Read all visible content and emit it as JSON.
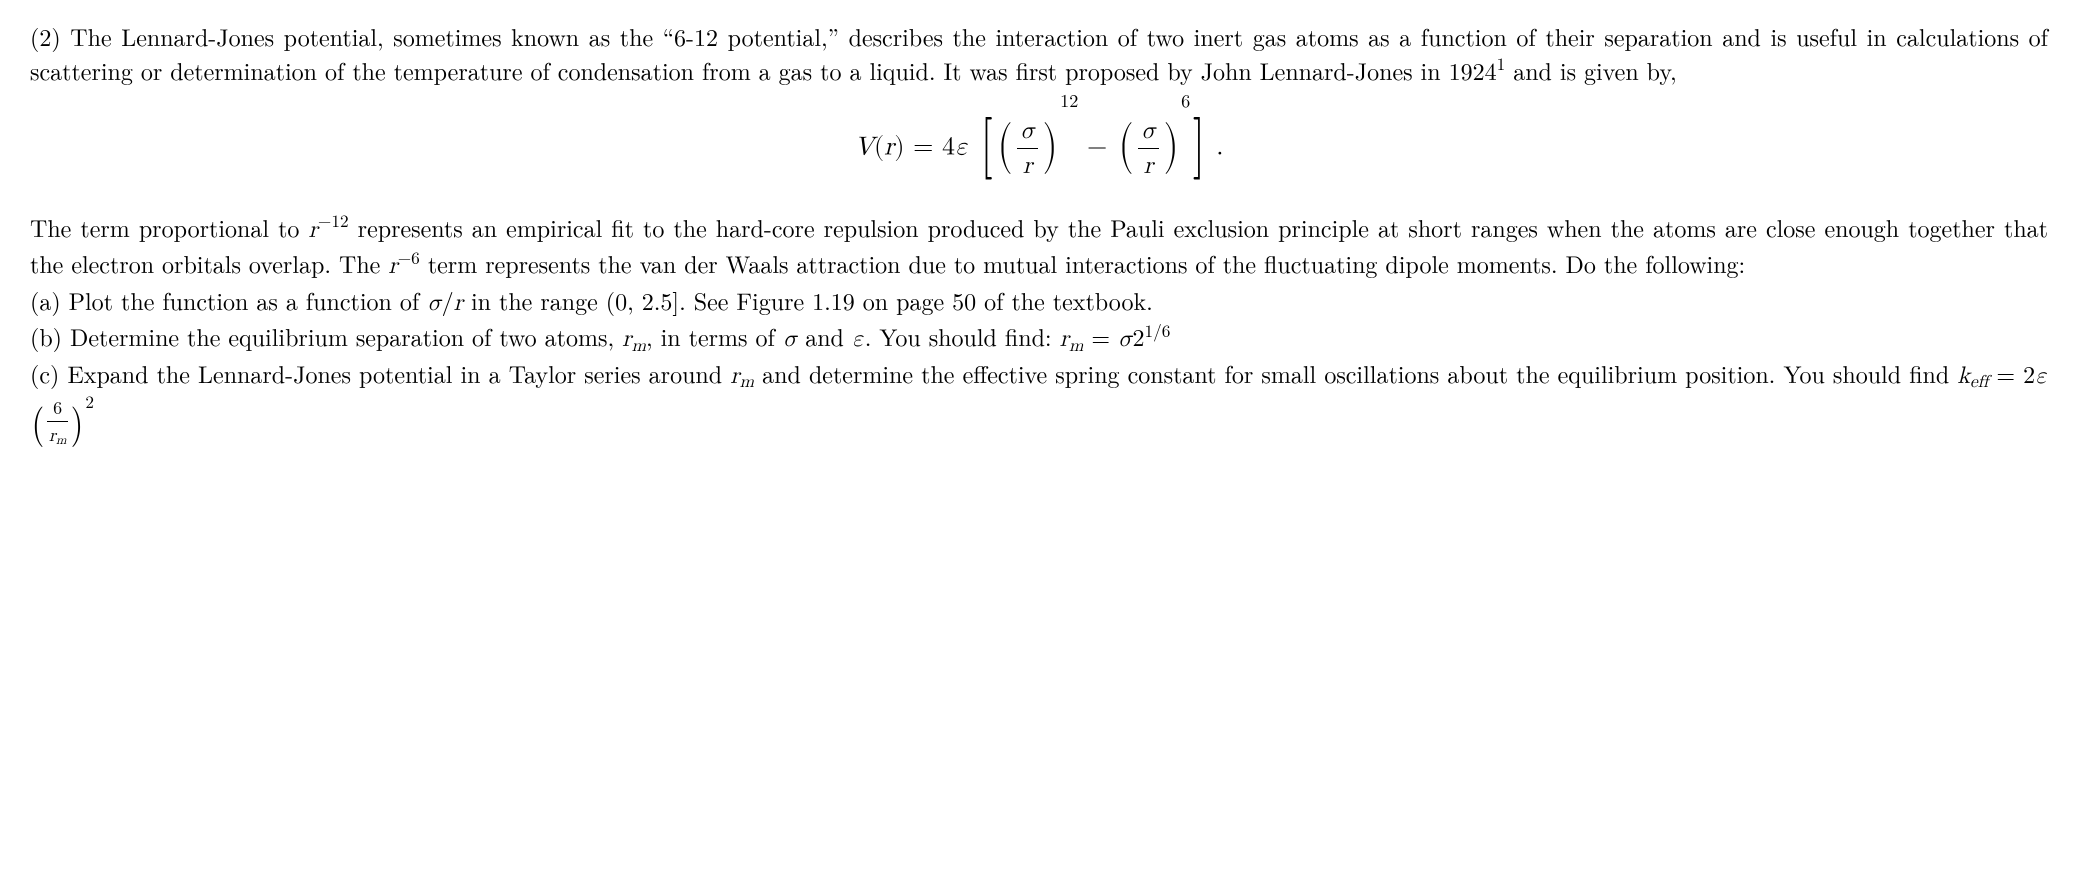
{
  "p1_a": "(2) The Lennard-Jones potential, sometimes known as the “6-12 potential,” describes the interaction of two inert gas atoms as a function of their separation and is useful in calculations of scattering or determination of the temperature of condensation from a gas to a liquid. It was first proposed by John Lennard-Jones in 1924",
  "p1_supref": "1",
  "p1_b": " and is given by,",
  "eq": {
    "Vr": "V",
    "r_var": "r",
    "eq_sign": " = 4",
    "eps": "ε",
    "sigma": "σ",
    "exp12": "12",
    "minus": " − ",
    "exp6": "6",
    "period": " ."
  },
  "p2_a": "The term proportional to ",
  "p2_r": "r",
  "p2_exp12": "−12",
  "p2_b": " represents an empirical fit to the hard-core repulsion produced by the Pauli exclusion principle at short ranges when the atoms are close enough together that the electron orbitals overlap. The ",
  "p2_exp6": "−6",
  "p2_c": " term represents the van der Waals attraction due to mutual interactions of the fluctuating dipole moments. Do the following:",
  "pa": {
    "a1": "(a) Plot the function as a function of ",
    "sigma": "σ",
    "slash": "/",
    "r": "r",
    "a2": " in the range (0, 2.5]. See Figure 1.19 on page 50 of the textbook."
  },
  "pb": {
    "b1": "(b) Determine the equilibrium separation of two atoms, ",
    "r": "r",
    "m": "m",
    "b2": ", in terms of ",
    "sigma": "σ",
    "and": " and ",
    "eps": "ε",
    "b3": ". You should find: ",
    "eq": " = ",
    "two": "2",
    "exp": "1/6"
  },
  "pc": {
    "c1": "(c) Expand the Lennard-Jones potential in a Taylor series around ",
    "r": "r",
    "m": "m",
    "c2": " and determine the effective spring constant for small oscillations about the equilibrium position. You should find ",
    "k": "k",
    "eff": "eff",
    "eq": " = 2",
    "eps": "ε",
    "six": "6",
    "exp2": "2"
  }
}
